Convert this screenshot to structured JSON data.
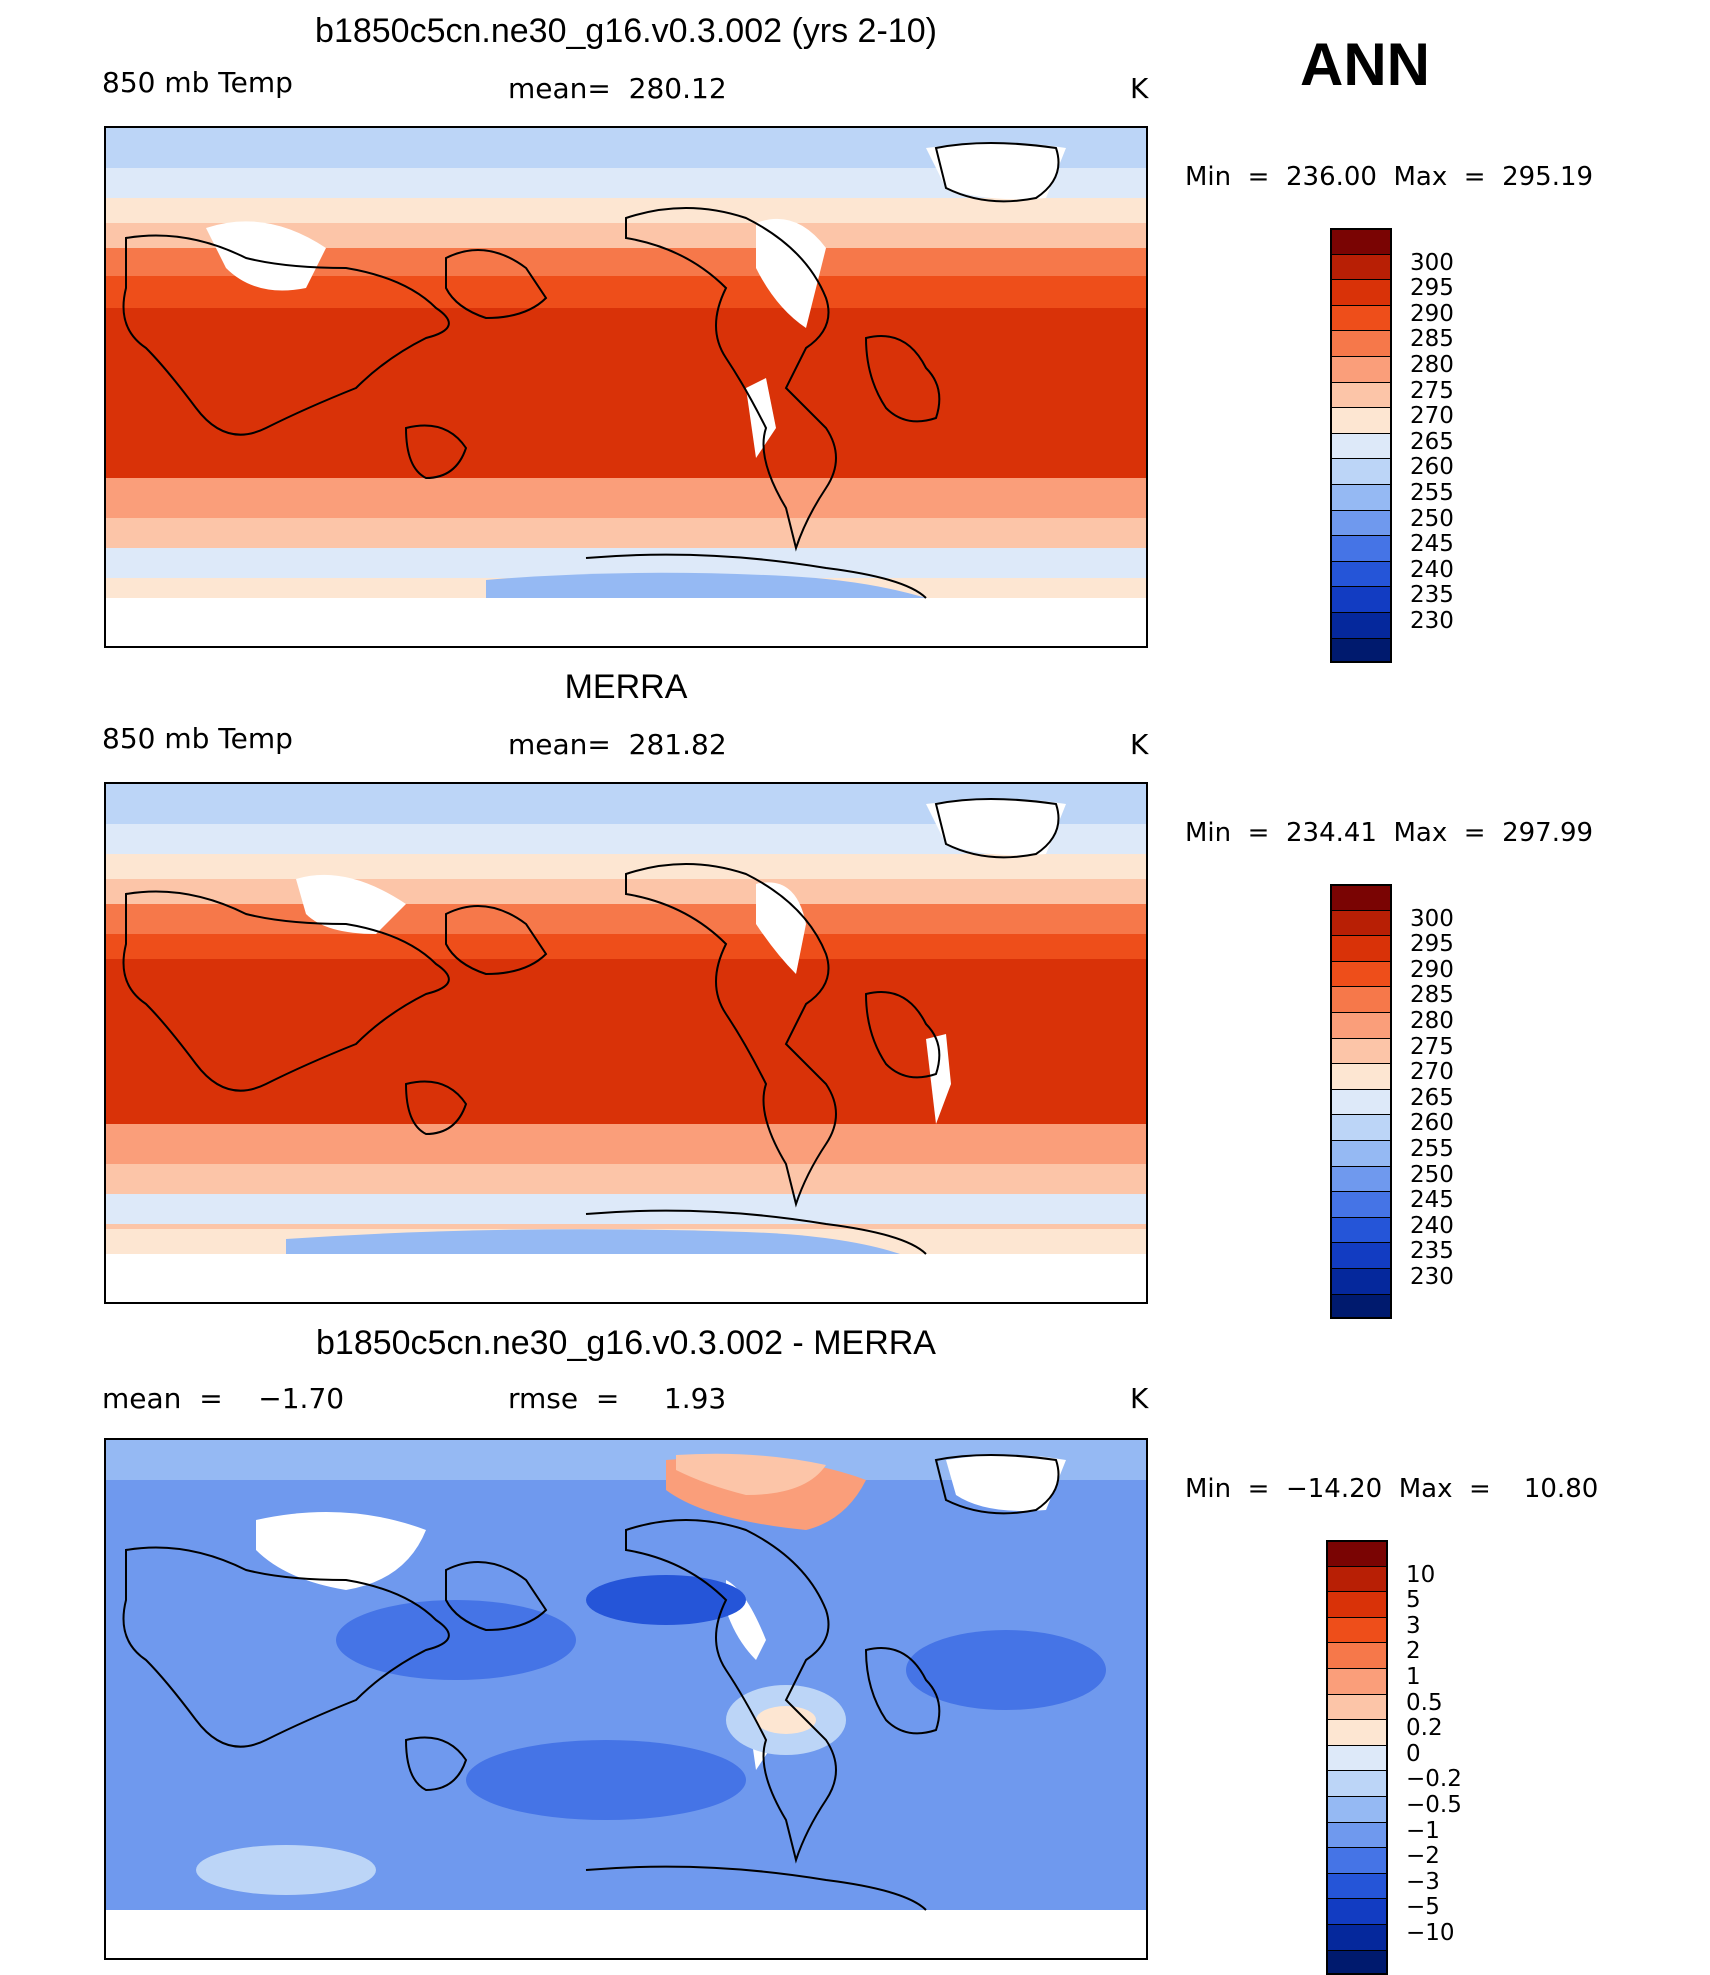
{
  "season": "ANN",
  "units": "K",
  "panels": [
    {
      "title": "b1850c5cn.ne30_g16.v0.3.002 (yrs 2-10)",
      "left_label": "850 mb Temp",
      "center_label": "mean=  280.12",
      "right_label": "K",
      "minmax": "Min  =  236.00  Max  =  295.19"
    },
    {
      "title": "MERRA",
      "left_label": "850 mb Temp",
      "center_label": "mean=  281.82",
      "right_label": "K",
      "minmax": "Min  =  234.41  Max  =  297.99"
    },
    {
      "title": "b1850c5cn.ne30_g16.v0.3.002 - MERRA",
      "left_label": "mean  =    −1.70",
      "center_label": "rmse  =     1.93",
      "right_label": "K",
      "minmax": "Min  =  −14.20  Max  =    10.80"
    }
  ],
  "colorbar_abs": {
    "labels": [
      "300",
      "295",
      "290",
      "285",
      "280",
      "275",
      "270",
      "265",
      "260",
      "255",
      "250",
      "245",
      "240",
      "235",
      "230"
    ],
    "colors": [
      "#7a0403",
      "#b81f05",
      "#d93208",
      "#ee4e1a",
      "#f6784a",
      "#fa9e7a",
      "#fcc5a8",
      "#fde6d2",
      "#dde9f9",
      "#bcd5f7",
      "#95b9f3",
      "#6f99ee",
      "#4574e6",
      "#2555d8",
      "#123cc2",
      "#05289c",
      "#001a6e"
    ]
  },
  "colorbar_diff": {
    "labels": [
      "10",
      "5",
      "3",
      "2",
      "1",
      "0.5",
      "0.2",
      "0",
      "−0.2",
      "−0.5",
      "−1",
      "−2",
      "−3",
      "−5",
      "−10"
    ],
    "colors": [
      "#7a0403",
      "#b81f05",
      "#d93208",
      "#ee4e1a",
      "#f6784a",
      "#fa9e7a",
      "#fcc5a8",
      "#fde6d2",
      "#dde9f9",
      "#bcd5f7",
      "#95b9f3",
      "#6f99ee",
      "#4574e6",
      "#2555d8",
      "#123cc2",
      "#05289c",
      "#001a6e"
    ]
  },
  "map_colors": {
    "hot": "#d93208",
    "warm": "#ee4e1a",
    "mild": "#f6784a",
    "cool": "#fa9e7a",
    "pale": "#fcc5a8",
    "cream": "#fde6d2",
    "ice": "#dde9f9",
    "lightblue": "#bcd5f7",
    "blue": "#95b9f3",
    "midblue": "#6f99ee",
    "deepblue": "#4574e6",
    "navy": "#2555d8"
  }
}
